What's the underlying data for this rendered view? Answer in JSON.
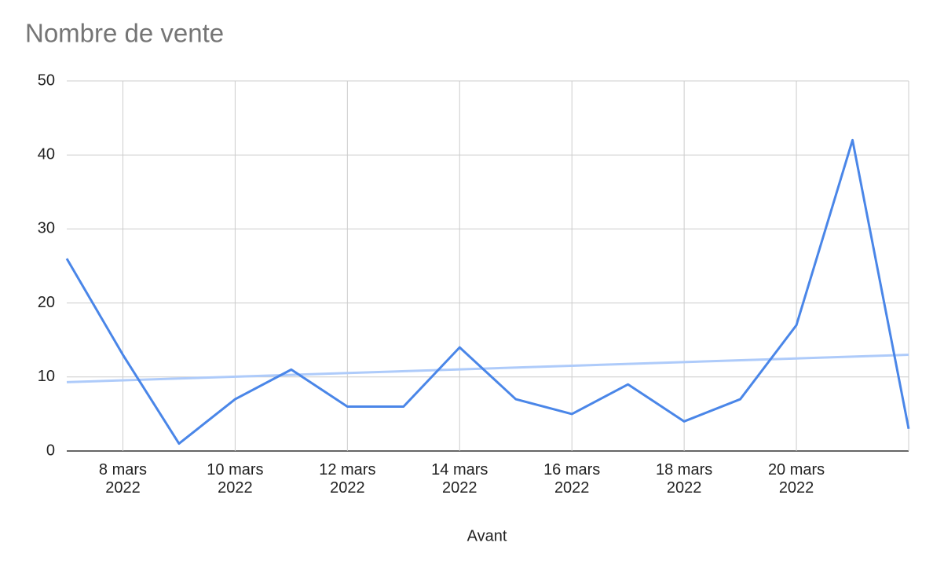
{
  "chart_data": {
    "type": "line",
    "title": "Nombre de vente",
    "x_label": "Avant",
    "x": [
      "2022-03-07",
      "2022-03-08",
      "2022-03-09",
      "2022-03-10",
      "2022-03-11",
      "2022-03-12",
      "2022-03-13",
      "2022-03-14",
      "2022-03-15",
      "2022-03-16",
      "2022-03-17",
      "2022-03-18",
      "2022-03-19",
      "2022-03-20",
      "2022-03-21",
      "2022-03-22"
    ],
    "values": [
      26,
      13,
      1,
      7,
      11,
      6,
      6,
      14,
      7,
      5,
      9,
      4,
      7,
      17,
      42,
      3
    ],
    "color": "#4a86e8",
    "trendline": {
      "color": "#aecbfa",
      "start": 9.3,
      "end": 13
    },
    "xlim": [
      "2022-03-07",
      "2022-03-22"
    ],
    "xticks": [
      {
        "value": "2022-03-08",
        "label": "8 mars\n2022"
      },
      {
        "value": "2022-03-10",
        "label": "10 mars\n2022"
      },
      {
        "value": "2022-03-12",
        "label": "12 mars\n2022"
      },
      {
        "value": "2022-03-14",
        "label": "14 mars\n2022"
      },
      {
        "value": "2022-03-16",
        "label": "16 mars\n2022"
      },
      {
        "value": "2022-03-18",
        "label": "18 mars\n2022"
      },
      {
        "value": "2022-03-20",
        "label": "20 mars\n2022"
      }
    ],
    "ylim": [
      0,
      50
    ],
    "yticks": [
      0,
      10,
      20,
      30,
      40,
      50
    ],
    "grid": true
  }
}
